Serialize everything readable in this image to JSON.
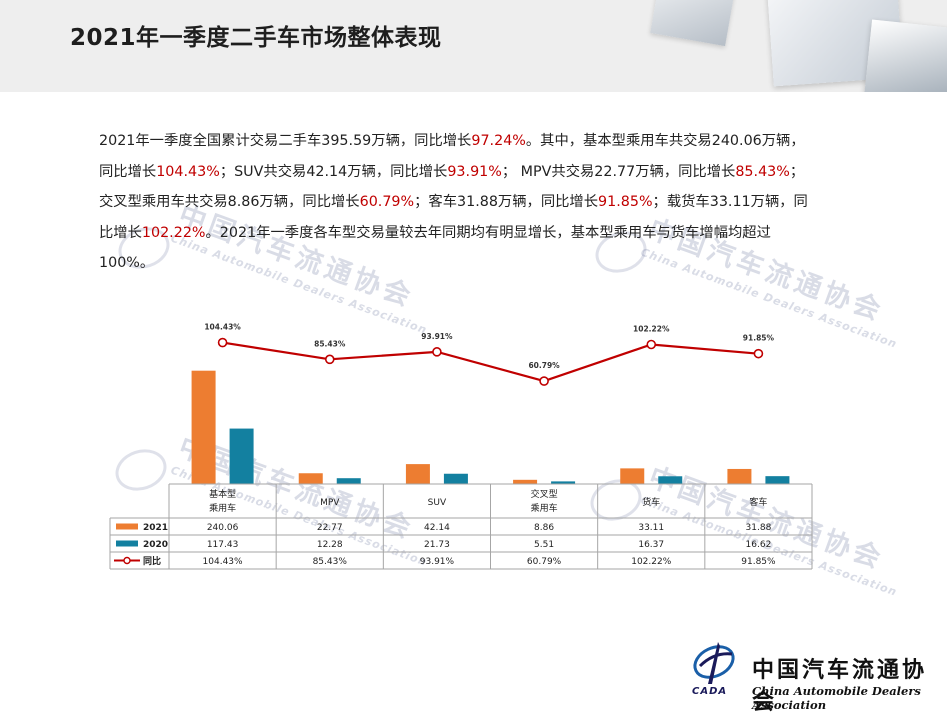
{
  "title": "2021年一季度二手车市场整体表现",
  "paragraph": {
    "lines": [
      [
        {
          "t": "2021年一季度全国累计交易二手车395.59万辆，同比增长"
        },
        {
          "t": "97.24%",
          "red": true
        },
        {
          "t": "。其中，基本型乘用车共交易240.06万辆，"
        }
      ],
      [
        {
          "t": "同比增长"
        },
        {
          "t": "104.43%",
          "red": true
        },
        {
          "t": "；SUV共交易42.14万辆，同比增长"
        },
        {
          "t": "93.91%",
          "red": true
        },
        {
          "t": "；  MPV共交易22.77万辆，同比增长"
        },
        {
          "t": "85.43%",
          "red": true
        },
        {
          "t": "；"
        }
      ],
      [
        {
          "t": "交叉型乘用车共交易8.86万辆，同比增长"
        },
        {
          "t": "60.79%",
          "red": true
        },
        {
          "t": "；客车31.88万辆，同比增长"
        },
        {
          "t": "91.85%",
          "red": true
        },
        {
          "t": "；载货车33.11万辆，同"
        }
      ],
      [
        {
          "t": "比增长"
        },
        {
          "t": "102.22%",
          "red": true
        },
        {
          "t": "。2021年一季度各车型交易量较去年同期均有明显增长，基本型乘用车与货车增幅均超过"
        }
      ],
      [
        {
          "t": "100%。"
        }
      ]
    ]
  },
  "watermark": {
    "zh": "中国汽车流通协会",
    "en": "China Automobile Dealers Association"
  },
  "chart_data": {
    "type": "bar",
    "categories": [
      "基本型\n乘用车",
      "MPV",
      "SUV",
      "交叉型\n乘用车",
      "货车",
      "客车"
    ],
    "series": [
      {
        "name": "2021",
        "values": [
          240.06,
          22.77,
          42.14,
          8.86,
          33.11,
          31.88
        ],
        "labels": [
          "240.06",
          "22.77",
          "42.14",
          "8.86",
          "33.11",
          "31.88"
        ],
        "color": "#ed7d31"
      },
      {
        "name": "2020",
        "values": [
          117.43,
          12.28,
          21.73,
          5.51,
          16.37,
          16.62
        ],
        "labels": [
          "117.43",
          "12.28",
          "21.73",
          "5.51",
          "16.37",
          "16.62"
        ],
        "color": "#1380a0"
      }
    ],
    "line": {
      "name": "同比",
      "values": [
        104.43,
        85.43,
        93.91,
        60.79,
        102.22,
        91.85
      ],
      "labels": [
        "104.43%",
        "85.43%",
        "93.91%",
        "60.79%",
        "102.22%",
        "91.85%"
      ],
      "color": "#c00000"
    },
    "ylim": [
      0,
      250
    ],
    "line_ylim": [
      -40,
      130
    ],
    "grid": false,
    "legend": "data-table"
  },
  "footer": {
    "zh": "中国汽车流通协会",
    "en": "China Automobile Dealers Association",
    "logo_text": "CADA"
  }
}
